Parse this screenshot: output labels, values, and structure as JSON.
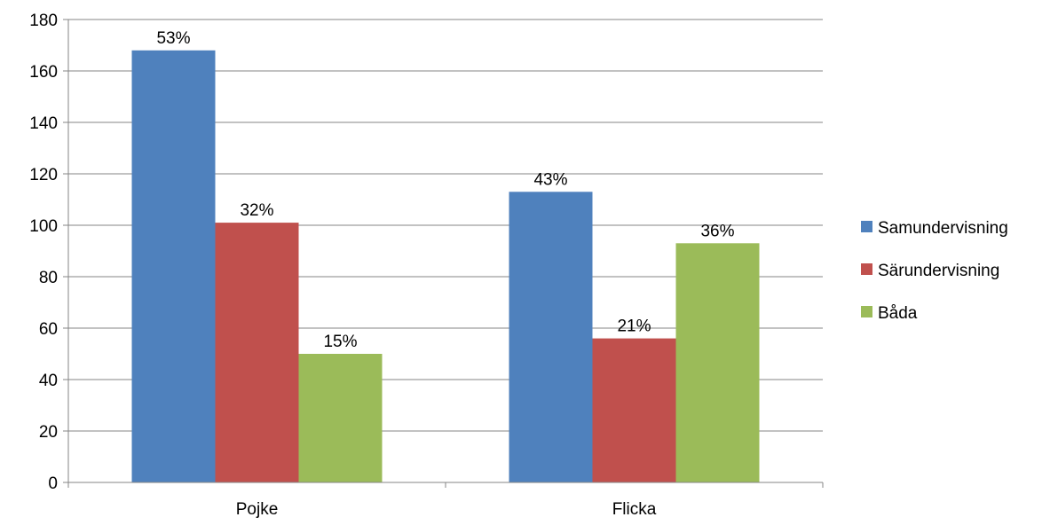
{
  "chart_data": {
    "type": "bar",
    "categories": [
      "Pojke",
      "Flicka"
    ],
    "series": [
      {
        "name": "Samundervisning",
        "values": [
          168,
          113
        ],
        "labels": [
          "53%",
          "43%"
        ],
        "color": "#4F81BD"
      },
      {
        "name": "Särundervisning",
        "values": [
          101,
          56
        ],
        "labels": [
          "32%",
          "21%"
        ],
        "color": "#C0504D"
      },
      {
        "name": "Båda",
        "values": [
          50,
          93
        ],
        "labels": [
          "15%",
          "36%"
        ],
        "color": "#9BBB59"
      }
    ],
    "yticks": [
      "0",
      "20",
      "40",
      "60",
      "80",
      "100",
      "120",
      "140",
      "160",
      "180"
    ],
    "ylim": [
      0,
      180
    ],
    "grid": true,
    "legend": "right"
  }
}
